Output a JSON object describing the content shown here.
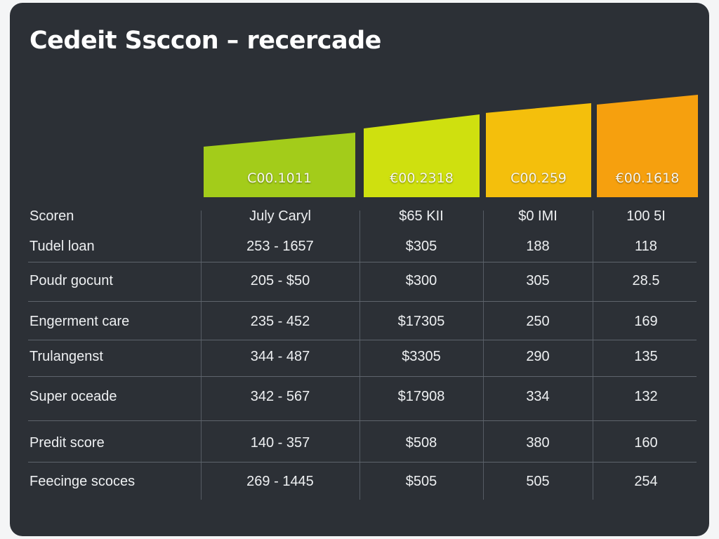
{
  "chart_data": {
    "type": "table",
    "title": "Cedeit Ssccon – recercade",
    "columns": [
      {
        "header": "C00.1011",
        "color": "#a3cc1a"
      },
      {
        "header": "€00.2318",
        "color": "#cfe00f"
      },
      {
        "header": "C00.259",
        "color": "#f4bf0c"
      },
      {
        "header": "€00.1618",
        "color": "#f6a00e"
      }
    ],
    "rows": [
      {
        "label": "Scoren",
        "values": [
          "July Caryl",
          "$65 KII",
          "$0 IMI",
          "100 5I"
        ]
      },
      {
        "label": "Tudel loan",
        "values": [
          "253 - 1657",
          "$305",
          "188",
          "118"
        ]
      },
      {
        "label": "Poudr gocunt",
        "values": [
          "205  -  $50",
          "$300",
          "305",
          "28.5"
        ]
      },
      {
        "label": "Engerment care",
        "values": [
          "235  -  452",
          "$17305",
          "250",
          "169"
        ]
      },
      {
        "label": "Trulangenst",
        "values": [
          "344  -  487",
          "$3305",
          "290",
          "135"
        ]
      },
      {
        "label": "Super oceade",
        "values": [
          "342  -  567",
          "$17908",
          "334",
          "132"
        ]
      },
      {
        "label": "Predit score",
        "values": [
          "140  -  357",
          "$508",
          "380",
          "160"
        ]
      },
      {
        "label": "Feecinge scoces",
        "values": [
          "269 - 1445",
          "$505",
          "505",
          "254"
        ]
      }
    ]
  }
}
